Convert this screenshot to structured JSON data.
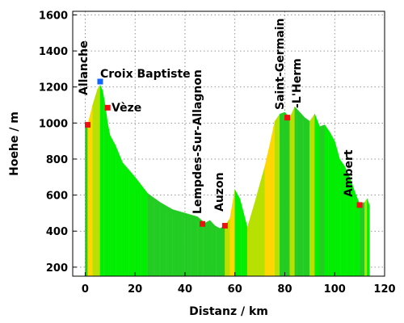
{
  "chart_data": {
    "type": "area",
    "xlabel": "Distanz / km",
    "ylabel": "Hoehe / m",
    "xlim": [
      -5,
      120
    ],
    "ylim": [
      150,
      1620
    ],
    "xticks": [
      "0",
      "20",
      "40",
      "60",
      "80",
      "100",
      "120"
    ],
    "yticks": [
      "200",
      "400",
      "600",
      "800",
      "1000",
      "1200",
      "1400",
      "1600"
    ],
    "grid": true,
    "colors": {
      "climb_steep": "#ffd700",
      "climb": "#b8e000",
      "descent": "#00ee00",
      "flat": "#22cc22",
      "marker_town": "#ee1111",
      "marker_pass": "#1166ff"
    },
    "profile": {
      "x": [
        0,
        1,
        3,
        5,
        6,
        7,
        8,
        9,
        10,
        12,
        15,
        20,
        25,
        30,
        35,
        40,
        45,
        48,
        50,
        52,
        54,
        56,
        58,
        60,
        62,
        65,
        68,
        70,
        72,
        74,
        76,
        78,
        80,
        82,
        84,
        86,
        88,
        90,
        92,
        94,
        96,
        98,
        100,
        102,
        104,
        106,
        108,
        110,
        112,
        113,
        114
      ],
      "y": [
        980,
        990,
        1100,
        1190,
        1210,
        1180,
        1100,
        1000,
        930,
        880,
        780,
        700,
        610,
        560,
        520,
        500,
        480,
        445,
        460,
        430,
        415,
        430,
        470,
        630,
        580,
        420,
        560,
        660,
        760,
        880,
        1010,
        1050,
        1060,
        1030,
        1090,
        1060,
        1030,
        1010,
        1050,
        980,
        990,
        950,
        900,
        800,
        760,
        700,
        620,
        550,
        560,
        580,
        540
      ]
    },
    "points": [
      {
        "name": "Allanche",
        "x": 1,
        "y": 990,
        "type": "town"
      },
      {
        "name": "Croix Baptiste",
        "x": 6,
        "y": 1230,
        "type": "pass"
      },
      {
        "name": "Vèze",
        "x": 9,
        "y": 1085,
        "type": "town"
      },
      {
        "name": "Lempdes-Sur-Allagnon",
        "x": 47,
        "y": 440,
        "type": "town"
      },
      {
        "name": "Auzon",
        "x": 56,
        "y": 430,
        "type": "town"
      },
      {
        "name": "Saint-Germain",
        "x": 81,
        "y": 1030,
        "type": "town"
      },
      {
        "name": "-L'Herm",
        "x": 81,
        "y": 1030,
        "type": "town-line2"
      },
      {
        "name": "Ambert",
        "x": 110,
        "y": 545,
        "type": "town"
      }
    ]
  }
}
